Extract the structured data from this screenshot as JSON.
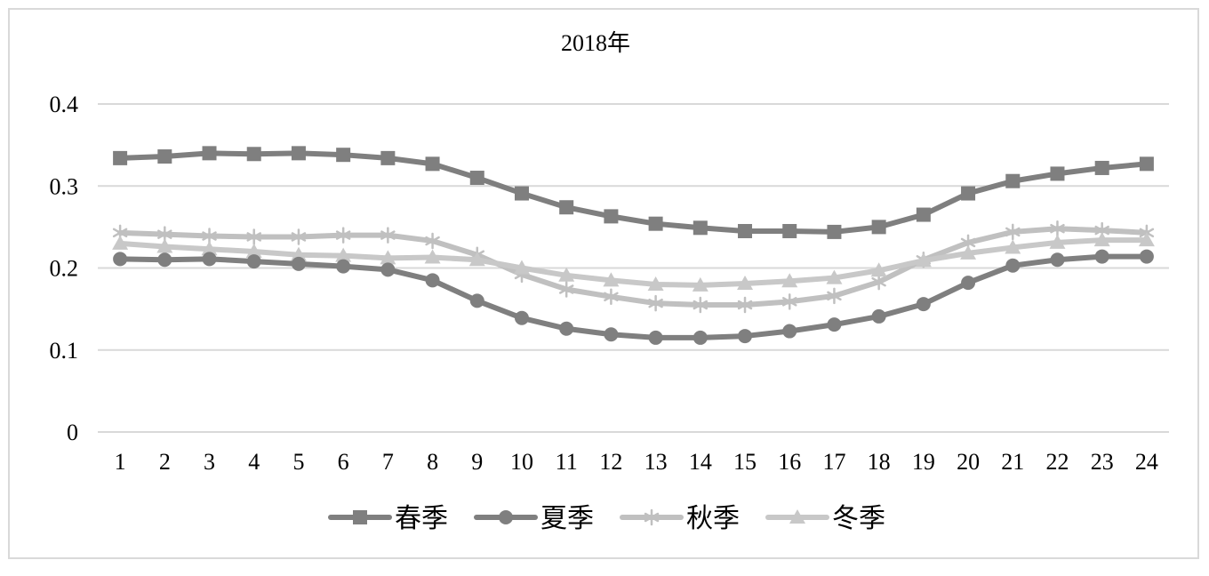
{
  "chart_data": {
    "type": "line",
    "title": "2018年",
    "xlabel": "",
    "ylabel": "",
    "x": [
      1,
      2,
      3,
      4,
      5,
      6,
      7,
      8,
      9,
      10,
      11,
      12,
      13,
      14,
      15,
      16,
      17,
      18,
      19,
      20,
      21,
      22,
      23,
      24
    ],
    "x_tick_labels": [
      "1",
      "2",
      "3",
      "4",
      "5",
      "6",
      "7",
      "8",
      "9",
      "10",
      "11",
      "12",
      "13",
      "14",
      "15",
      "16",
      "17",
      "18",
      "19",
      "20",
      "21",
      "22",
      "23",
      "24"
    ],
    "ylim": [
      0,
      0.4
    ],
    "y_ticks": [
      0,
      0.1,
      0.2,
      0.3,
      0.4
    ],
    "y_tick_labels": [
      "0",
      "0.1",
      "0.2",
      "0.3",
      "0.4"
    ],
    "grid": "horizontal",
    "legend_position": "bottom",
    "series": [
      {
        "name": "春季",
        "marker": "square",
        "color": "#7f7f7f",
        "values": [
          0.334,
          0.336,
          0.34,
          0.339,
          0.34,
          0.338,
          0.334,
          0.327,
          0.31,
          0.291,
          0.274,
          0.263,
          0.254,
          0.249,
          0.245,
          0.245,
          0.244,
          0.25,
          0.265,
          0.291,
          0.306,
          0.315,
          0.322,
          0.327
        ]
      },
      {
        "name": "夏季",
        "marker": "circle",
        "color": "#7f7f7f",
        "values": [
          0.211,
          0.21,
          0.211,
          0.208,
          0.205,
          0.202,
          0.198,
          0.185,
          0.16,
          0.139,
          0.126,
          0.119,
          0.115,
          0.115,
          0.117,
          0.123,
          0.131,
          0.141,
          0.156,
          0.182,
          0.203,
          0.21,
          0.214,
          0.214
        ]
      },
      {
        "name": "秋季",
        "marker": "asterisk",
        "color": "#c0c0c0",
        "values": [
          0.243,
          0.241,
          0.239,
          0.238,
          0.238,
          0.24,
          0.24,
          0.233,
          0.216,
          0.192,
          0.174,
          0.165,
          0.157,
          0.155,
          0.155,
          0.159,
          0.166,
          0.183,
          0.21,
          0.231,
          0.244,
          0.248,
          0.246,
          0.243
        ]
      },
      {
        "name": "冬季",
        "marker": "triangle",
        "color": "#c8c8c8",
        "values": [
          0.23,
          0.226,
          0.223,
          0.22,
          0.216,
          0.215,
          0.212,
          0.213,
          0.21,
          0.2,
          0.191,
          0.185,
          0.18,
          0.179,
          0.181,
          0.184,
          0.188,
          0.197,
          0.209,
          0.218,
          0.225,
          0.231,
          0.234,
          0.234
        ]
      }
    ]
  }
}
